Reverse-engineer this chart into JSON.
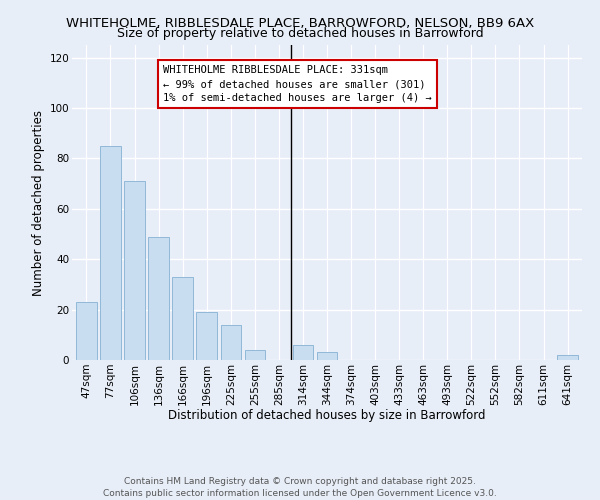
{
  "title": "WHITEHOLME, RIBBLESDALE PLACE, BARROWFORD, NELSON, BB9 6AX",
  "subtitle": "Size of property relative to detached houses in Barrowford",
  "xlabel": "Distribution of detached houses by size in Barrowford",
  "ylabel": "Number of detached properties",
  "bar_labels": [
    "47sqm",
    "77sqm",
    "106sqm",
    "136sqm",
    "166sqm",
    "196sqm",
    "225sqm",
    "255sqm",
    "285sqm",
    "314sqm",
    "344sqm",
    "374sqm",
    "403sqm",
    "433sqm",
    "463sqm",
    "493sqm",
    "522sqm",
    "552sqm",
    "582sqm",
    "611sqm",
    "641sqm"
  ],
  "bar_values": [
    23,
    85,
    71,
    49,
    33,
    19,
    14,
    4,
    0,
    6,
    3,
    0,
    0,
    0,
    0,
    0,
    0,
    0,
    0,
    0,
    2
  ],
  "bar_color": "#c8ddf0",
  "bar_edge_color": "#90b8d8",
  "highlight_line_color": "#000000",
  "annotation_text": "WHITEHOLME RIBBLESDALE PLACE: 331sqm\n← 99% of detached houses are smaller (301)\n1% of semi-detached houses are larger (4) →",
  "annotation_box_color": "#ffffff",
  "annotation_box_edge_color": "#cc0000",
  "ylim": [
    0,
    125
  ],
  "yticks": [
    0,
    20,
    40,
    60,
    80,
    100,
    120
  ],
  "footer1": "Contains HM Land Registry data © Crown copyright and database right 2025.",
  "footer2": "Contains public sector information licensed under the Open Government Licence v3.0.",
  "bg_color": "#e8eef8",
  "grid_color": "#ffffff",
  "title_fontsize": 9.5,
  "subtitle_fontsize": 9,
  "axis_label_fontsize": 8.5,
  "tick_fontsize": 7.5,
  "annotation_fontsize": 7.5,
  "footer_fontsize": 6.5
}
